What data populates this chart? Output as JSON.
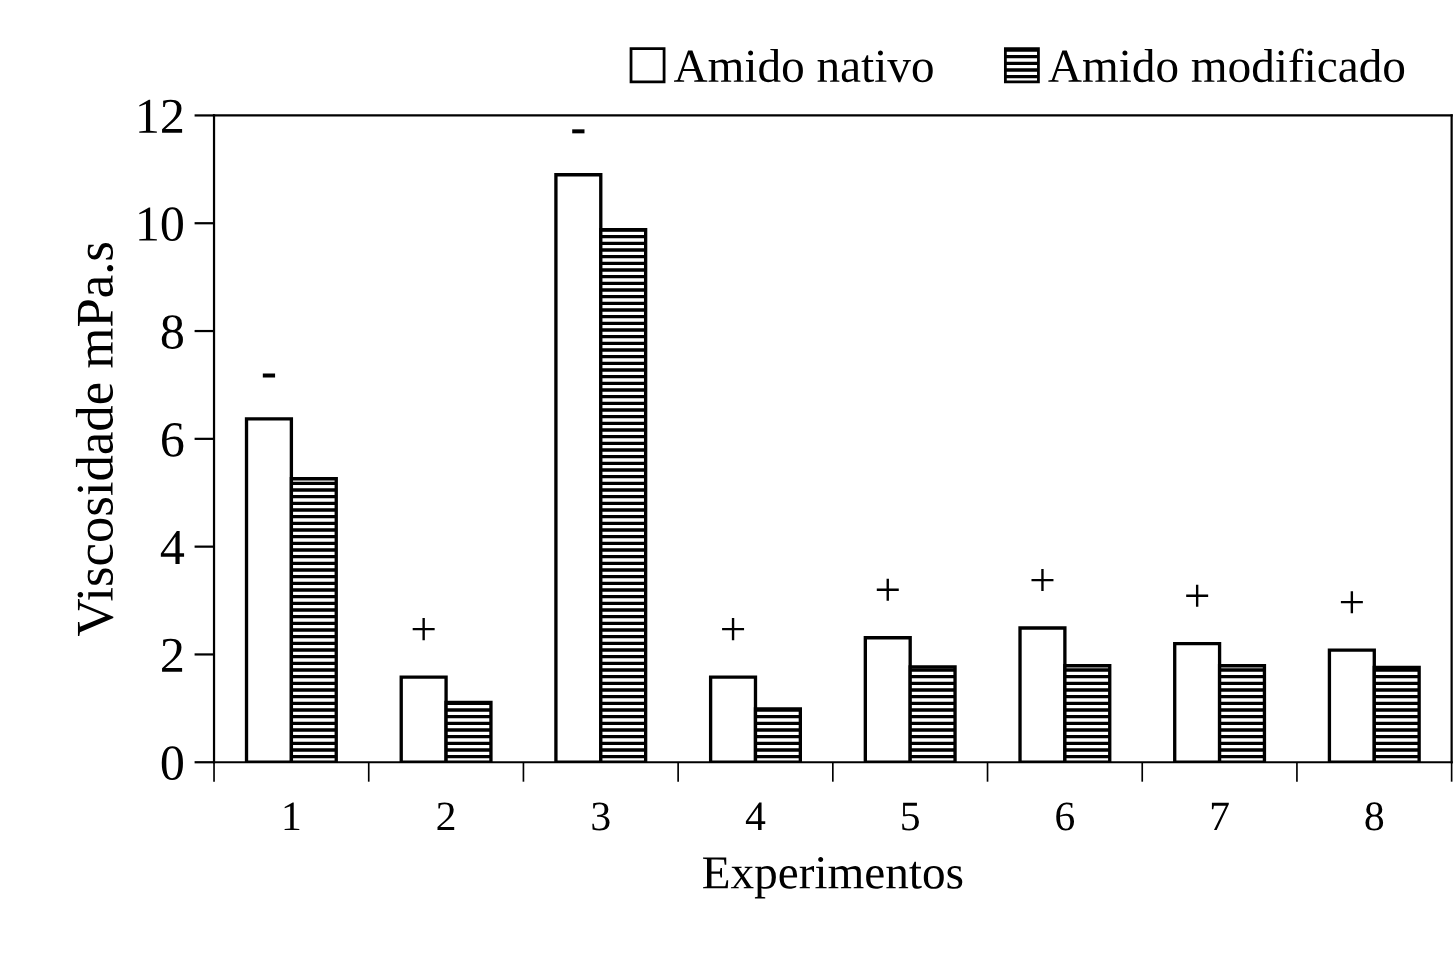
{
  "chart_data": {
    "type": "bar",
    "xlabel": "Experimentos",
    "ylabel": "Viscosidade mPa.s",
    "categories": [
      "1",
      "2",
      "3",
      "4",
      "5",
      "6",
      "7",
      "8"
    ],
    "series": [
      {
        "name": "Amido nativo",
        "color": "#ffffff",
        "values": [
          6.37,
          1.58,
          10.9,
          1.58,
          2.31,
          2.49,
          2.2,
          2.08
        ]
      },
      {
        "name": "Amido modificado",
        "color": "#000000",
        "values": [
          5.26,
          1.11,
          9.88,
          0.99,
          1.77,
          1.79,
          1.79,
          1.76
        ]
      }
    ],
    "ylim": [
      0,
      12
    ],
    "yticks": [
      0,
      2,
      4,
      6,
      8,
      10,
      12
    ],
    "grid": false,
    "legend": "top",
    "annotations": [
      {
        "text": "-",
        "x": "1",
        "y": 6.37
      },
      {
        "text": "+",
        "x": "2",
        "y": 1.58
      },
      {
        "text": "-",
        "x": "3",
        "y": 10.9
      },
      {
        "text": "+",
        "x": "4",
        "y": 1.58
      },
      {
        "text": "+",
        "x": "5",
        "y": 2.31
      },
      {
        "text": "+",
        "x": "6",
        "y": 2.49
      },
      {
        "text": "+",
        "x": "7",
        "y": 2.2
      },
      {
        "text": "+",
        "x": "8",
        "y": 2.08
      }
    ]
  }
}
